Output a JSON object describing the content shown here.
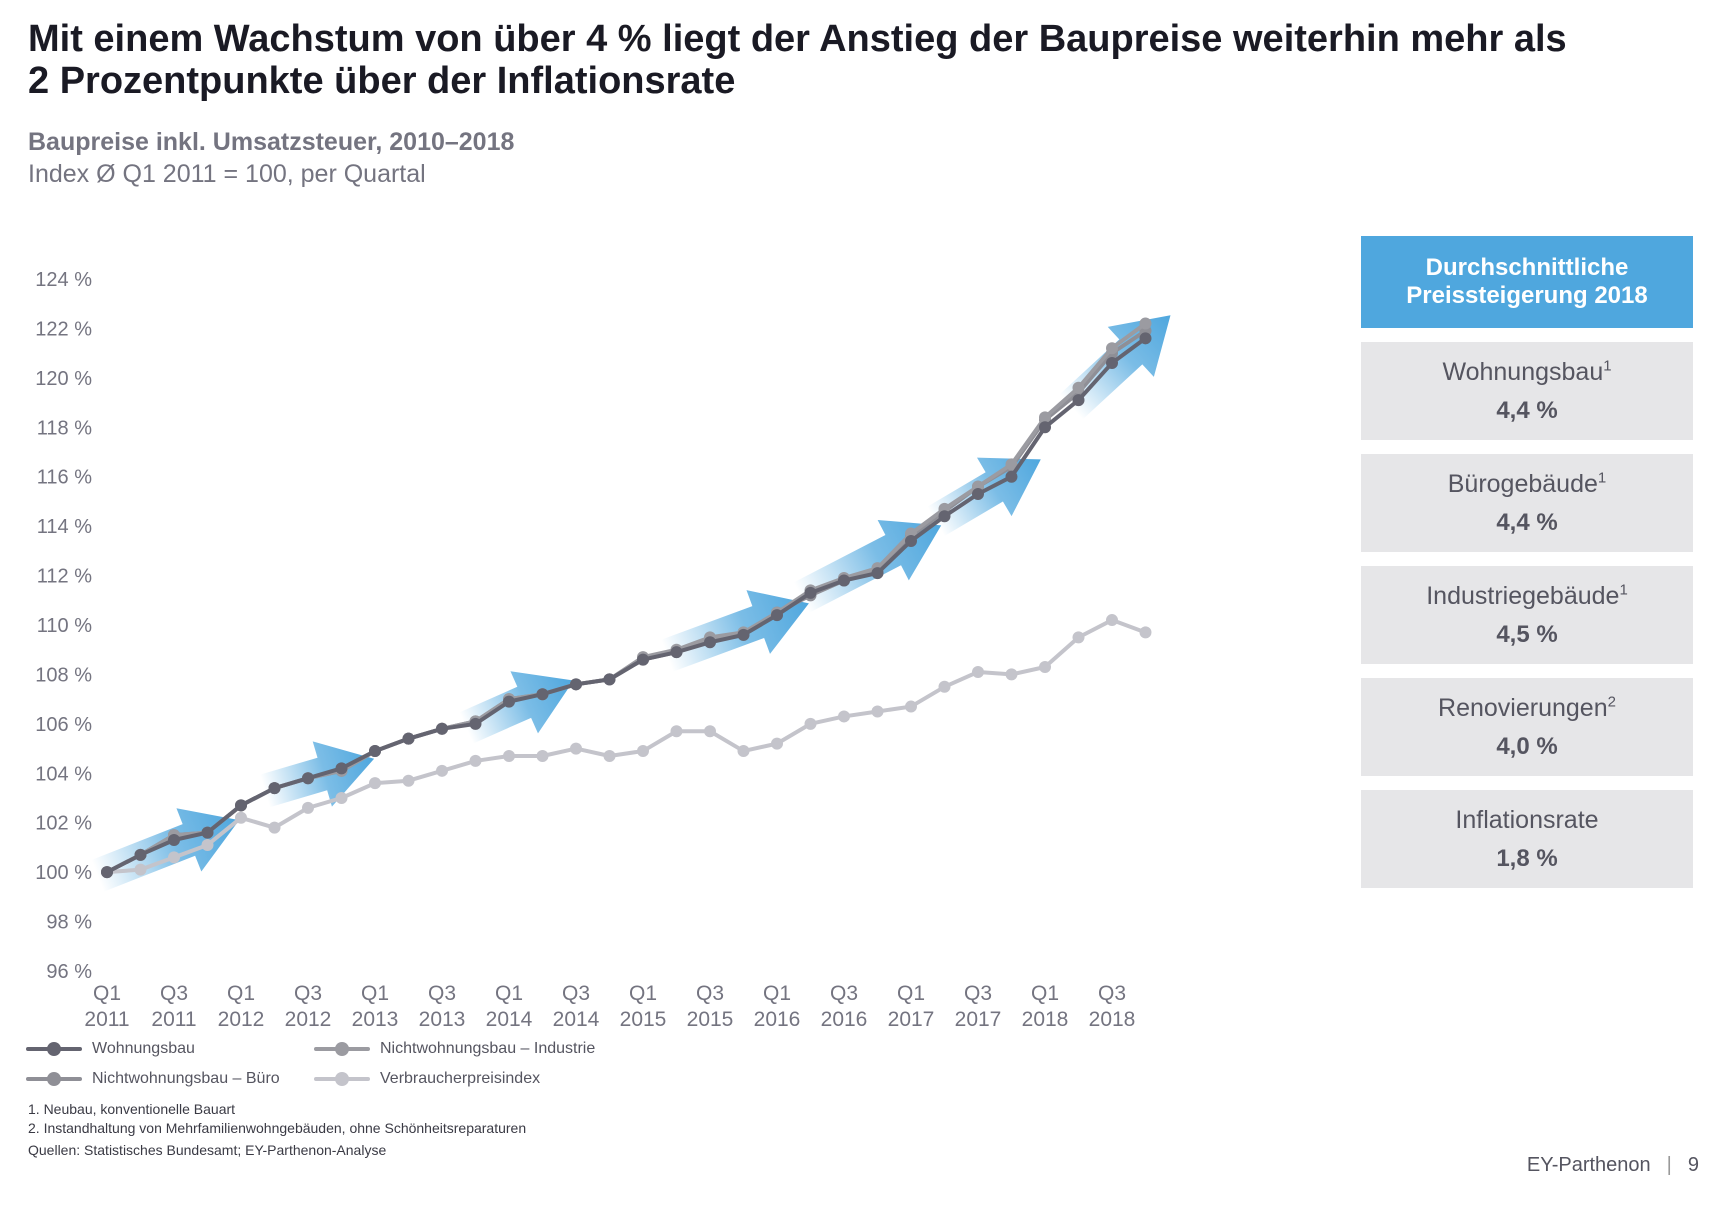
{
  "header": {
    "title_line1": "Mit einem Wachstum von über 4 % liegt der Anstieg der Baupreise weiterhin mehr als",
    "title_line2": "2 Prozentpunkte über der Inflationsrate",
    "subtitle": "Baupreise inkl. Umsatzsteuer, 2010–2018",
    "subtitle2": "Index Ø Q1 2011 = 100, per Quartal"
  },
  "chart_data": {
    "type": "line",
    "title": "Baupreise inkl. Umsatzsteuer, 2010–2018",
    "ylim": [
      96,
      124
    ],
    "y_ticks": [
      "124 %",
      "122 %",
      "120 %",
      "118 %",
      "116 %",
      "114 %",
      "112 %",
      "110 %",
      "108 %",
      "106 %",
      "104 %",
      "102 %",
      "100 %",
      "98 %",
      "96 %"
    ],
    "y_tick_values": [
      124,
      122,
      120,
      118,
      116,
      114,
      112,
      110,
      108,
      106,
      104,
      102,
      100,
      98,
      96
    ],
    "x_categories": [
      "Q1 2011",
      "Q2 2011",
      "Q3 2011",
      "Q4 2011",
      "Q1 2012",
      "Q2 2012",
      "Q3 2012",
      "Q4 2012",
      "Q1 2013",
      "Q2 2013",
      "Q3 2013",
      "Q4 2013",
      "Q1 2014",
      "Q2 2014",
      "Q3 2014",
      "Q4 2014",
      "Q1 2015",
      "Q2 2015",
      "Q3 2015",
      "Q4 2015",
      "Q1 2016",
      "Q2 2016",
      "Q3 2016",
      "Q4 2016",
      "Q1 2017",
      "Q2 2017",
      "Q3 2017",
      "Q4 2017",
      "Q1 2018",
      "Q2 2018",
      "Q3 2018",
      "Q4 2018"
    ],
    "x_tick_labels": [
      {
        "q": "Q1",
        "y": "2011"
      },
      {
        "q": "Q3",
        "y": "2011"
      },
      {
        "q": "Q1",
        "y": "2012"
      },
      {
        "q": "Q3",
        "y": "2012"
      },
      {
        "q": "Q1",
        "y": "2013"
      },
      {
        "q": "Q3",
        "y": "2013"
      },
      {
        "q": "Q1",
        "y": "2014"
      },
      {
        "q": "Q3",
        "y": "2014"
      },
      {
        "q": "Q1",
        "y": "2015"
      },
      {
        "q": "Q3",
        "y": "2015"
      },
      {
        "q": "Q1",
        "y": "2016"
      },
      {
        "q": "Q3",
        "y": "2016"
      },
      {
        "q": "Q1",
        "y": "2017"
      },
      {
        "q": "Q3",
        "y": "2017"
      },
      {
        "q": "Q1",
        "y": "2018"
      },
      {
        "q": "Q3",
        "y": "2018"
      }
    ],
    "series": [
      {
        "name": "Verbraucherpreisindex",
        "color": "#c4c4cb",
        "values": [
          100.0,
          100.1,
          100.6,
          101.1,
          102.2,
          101.8,
          102.6,
          103.0,
          103.6,
          103.7,
          104.1,
          104.5,
          104.7,
          104.7,
          105.0,
          104.7,
          104.9,
          105.7,
          105.7,
          104.9,
          105.2,
          106.0,
          106.3,
          106.5,
          106.7,
          107.5,
          108.1,
          108.0,
          108.3,
          109.5,
          110.2,
          109.7
        ]
      },
      {
        "name": "Nichtwohnungsbau – Büro",
        "color": "#8f8f96",
        "values": [
          100.0,
          100.7,
          101.5,
          101.6,
          102.7,
          103.4,
          103.8,
          104.1,
          104.9,
          105.4,
          105.8,
          106.1,
          107.0,
          107.2,
          107.6,
          107.8,
          108.6,
          108.9,
          109.4,
          109.6,
          110.5,
          111.2,
          111.8,
          112.2,
          113.6,
          114.6,
          115.6,
          116.4,
          118.3,
          119.4,
          121.0,
          121.9
        ]
      },
      {
        "name": "Nichtwohnungsbau – Industrie",
        "color": "#9b9ba1",
        "values": [
          100.0,
          100.7,
          101.5,
          101.6,
          102.7,
          103.4,
          103.8,
          104.1,
          104.9,
          105.4,
          105.8,
          106.1,
          107.0,
          107.2,
          107.6,
          107.8,
          108.7,
          109.0,
          109.5,
          109.7,
          110.5,
          111.4,
          111.9,
          112.3,
          113.7,
          114.7,
          115.6,
          116.5,
          118.4,
          119.6,
          121.2,
          122.2
        ]
      },
      {
        "name": "Wohnungsbau",
        "color": "#646470",
        "values": [
          100.0,
          100.7,
          101.3,
          101.6,
          102.7,
          103.4,
          103.8,
          104.2,
          104.9,
          105.4,
          105.8,
          106.0,
          106.9,
          107.2,
          107.6,
          107.8,
          108.6,
          108.9,
          109.3,
          109.6,
          110.4,
          111.3,
          111.8,
          112.1,
          113.4,
          114.4,
          115.3,
          116.0,
          118.0,
          119.1,
          120.6,
          121.6
        ]
      }
    ]
  },
  "legend": {
    "items": [
      {
        "label": "Wohnungsbau",
        "color": "#646470"
      },
      {
        "label": "Nichtwohnungsbau – Industrie",
        "color": "#9b9ba1"
      },
      {
        "label": "Nichtwohnungsbau – Büro",
        "color": "#8f8f96"
      },
      {
        "label": "Verbraucherpreisindex",
        "color": "#c4c4cb"
      }
    ]
  },
  "panel": {
    "heading_line1": "Durchschnittliche",
    "heading_line2": "Preissteigerung 2018",
    "heading_color": "#4fa7de",
    "boxes": [
      {
        "label": "Wohnungsbau",
        "sup": "1",
        "value": "4,4 %"
      },
      {
        "label": "Bürogebäude",
        "sup": "1",
        "value": "4,4 %"
      },
      {
        "label": "Industriegebäude",
        "sup": "1",
        "value": "4,5 %"
      },
      {
        "label": "Renovierungen",
        "sup": "2",
        "value": "4,0 %"
      },
      {
        "label": "Inflationsrate",
        "sup": "",
        "value": "1,8 %"
      }
    ]
  },
  "footnotes": {
    "note1": "1. Neubau, konventionelle Bauart",
    "note2": "2. Instandhaltung von Mehrfamilienwohngebäuden, ohne Schönheitsreparaturen",
    "sources": "Quellen: Statistisches Bundesamt; EY-Parthenon-Analyse"
  },
  "brand": {
    "name": "EY-Parthenon",
    "page": "9"
  }
}
